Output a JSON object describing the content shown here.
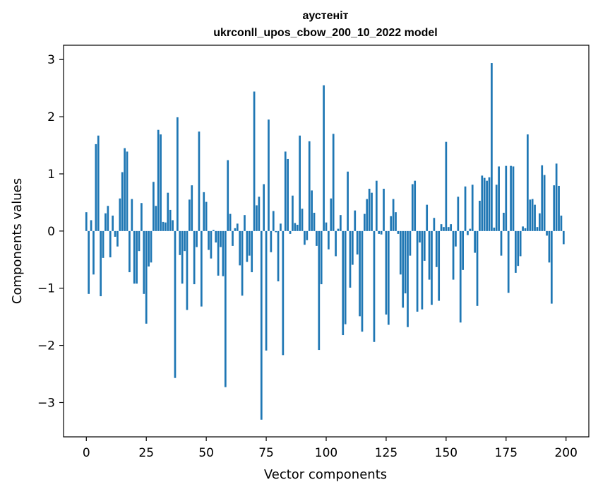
{
  "chart_data": {
    "type": "bar",
    "title": "аустеніт",
    "subtitle": "ukrconll_upos_cbow_200_10_2022 model",
    "xlabel": "Vector components",
    "ylabel": "Components values",
    "xlim": [
      -9.5,
      209.5
    ],
    "ylim": [
      -3.6,
      3.25
    ],
    "xticks": [
      0,
      25,
      50,
      75,
      100,
      125,
      150,
      175,
      200
    ],
    "xtick_labels": [
      "0",
      "25",
      "50",
      "75",
      "100",
      "125",
      "150",
      "175",
      "200"
    ],
    "yticks": [
      -3,
      -2,
      -1,
      0,
      1,
      2,
      3
    ],
    "ytick_labels": [
      "−3",
      "−2",
      "−1",
      "0",
      "1",
      "2",
      "3"
    ],
    "bar_color": "#1f77b4",
    "grid": false,
    "x": [
      0,
      1,
      2,
      3,
      4,
      5,
      6,
      7,
      8,
      9,
      10,
      11,
      12,
      13,
      14,
      15,
      16,
      17,
      18,
      19,
      20,
      21,
      22,
      23,
      24,
      25,
      26,
      27,
      28,
      29,
      30,
      31,
      32,
      33,
      34,
      35,
      36,
      37,
      38,
      39,
      40,
      41,
      42,
      43,
      44,
      45,
      46,
      47,
      48,
      49,
      50,
      51,
      52,
      53,
      54,
      55,
      56,
      57,
      58,
      59,
      60,
      61,
      62,
      63,
      64,
      65,
      66,
      67,
      68,
      69,
      70,
      71,
      72,
      73,
      74,
      75,
      76,
      77,
      78,
      79,
      80,
      81,
      82,
      83,
      84,
      85,
      86,
      87,
      88,
      89,
      90,
      91,
      92,
      93,
      94,
      95,
      96,
      97,
      98,
      99,
      100,
      101,
      102,
      103,
      104,
      105,
      106,
      107,
      108,
      109,
      110,
      111,
      112,
      113,
      114,
      115,
      116,
      117,
      118,
      119,
      120,
      121,
      122,
      123,
      124,
      125,
      126,
      127,
      128,
      129,
      130,
      131,
      132,
      133,
      134,
      135,
      136,
      137,
      138,
      139,
      140,
      141,
      142,
      143,
      144,
      145,
      146,
      147,
      148,
      149,
      150,
      151,
      152,
      153,
      154,
      155,
      156,
      157,
      158,
      159,
      160,
      161,
      162,
      163,
      164,
      165,
      166,
      167,
      168,
      169,
      170,
      171,
      172,
      173,
      174,
      175,
      176,
      177,
      178,
      179,
      180,
      181,
      182,
      183,
      184,
      185,
      186,
      187,
      188,
      189,
      190,
      191,
      192,
      193,
      194,
      195,
      196,
      197,
      198,
      199
    ],
    "values": [
      0.33,
      -1.1,
      0.19,
      -0.76,
      1.52,
      1.67,
      -1.14,
      -0.47,
      0.31,
      0.44,
      -0.46,
      0.27,
      -0.1,
      -0.27,
      0.57,
      1.03,
      1.45,
      1.39,
      -0.72,
      0.56,
      -0.92,
      -0.92,
      -0.35,
      0.49,
      -1.1,
      -1.62,
      -0.62,
      -0.55,
      0.86,
      0.44,
      1.77,
      1.69,
      0.16,
      0.15,
      0.67,
      0.37,
      0.19,
      -2.57,
      1.99,
      -0.42,
      -0.92,
      -0.35,
      -1.38,
      0.55,
      0.8,
      -0.93,
      -0.28,
      1.74,
      -1.32,
      0.68,
      0.51,
      -0.33,
      -0.48,
      0.02,
      -0.2,
      -0.78,
      -0.28,
      -0.79,
      -2.73,
      1.24,
      0.3,
      -0.26,
      0.05,
      0.13,
      -0.6,
      -1.13,
      0.28,
      -0.54,
      -0.43,
      -0.72,
      2.44,
      0.45,
      0.6,
      -3.3,
      0.82,
      -2.09,
      1.95,
      -0.37,
      0.35,
      -0.02,
      -0.88,
      0.13,
      -2.17,
      1.39,
      1.26,
      -0.05,
      0.62,
      0.14,
      0.11,
      1.67,
      0.39,
      -0.24,
      -0.16,
      1.57,
      0.71,
      0.32,
      -0.26,
      -2.08,
      -0.93,
      2.55,
      0.15,
      -0.32,
      0.57,
      1.7,
      -0.44,
      0.04,
      0.28,
      -1.82,
      -1.63,
      1.04,
      -0.99,
      -0.59,
      0.36,
      -0.41,
      -1.49,
      -1.76,
      0.3,
      0.56,
      0.74,
      0.67,
      -1.94,
      0.88,
      -0.05,
      -0.06,
      0.74,
      -1.46,
      -1.64,
      0.26,
      0.56,
      0.33,
      -0.05,
      -0.76,
      -1.34,
      -1.09,
      -1.68,
      -0.43,
      0.82,
      0.88,
      -1.41,
      -0.2,
      -1.37,
      -0.52,
      0.46,
      -0.85,
      -1.29,
      0.23,
      -0.63,
      -1.22,
      0.12,
      0.07,
      1.56,
      0.07,
      0.12,
      -0.85,
      -0.27,
      0.6,
      -1.6,
      -0.68,
      0.78,
      -0.07,
      0.04,
      0.81,
      -0.38,
      -1.31,
      0.53,
      0.97,
      0.93,
      0.88,
      0.94,
      2.94,
      0.06,
      0.81,
      1.13,
      -0.43,
      0.32,
      1.14,
      -1.08,
      1.14,
      1.13,
      -0.73,
      -0.61,
      -0.44,
      0.08,
      0.05,
      1.69,
      0.55,
      0.56,
      0.46,
      0.07,
      0.31,
      1.15,
      0.98,
      -0.08,
      -0.55,
      -1.27,
      0.8,
      1.18,
      0.79,
      0.27,
      -0.23
    ]
  }
}
